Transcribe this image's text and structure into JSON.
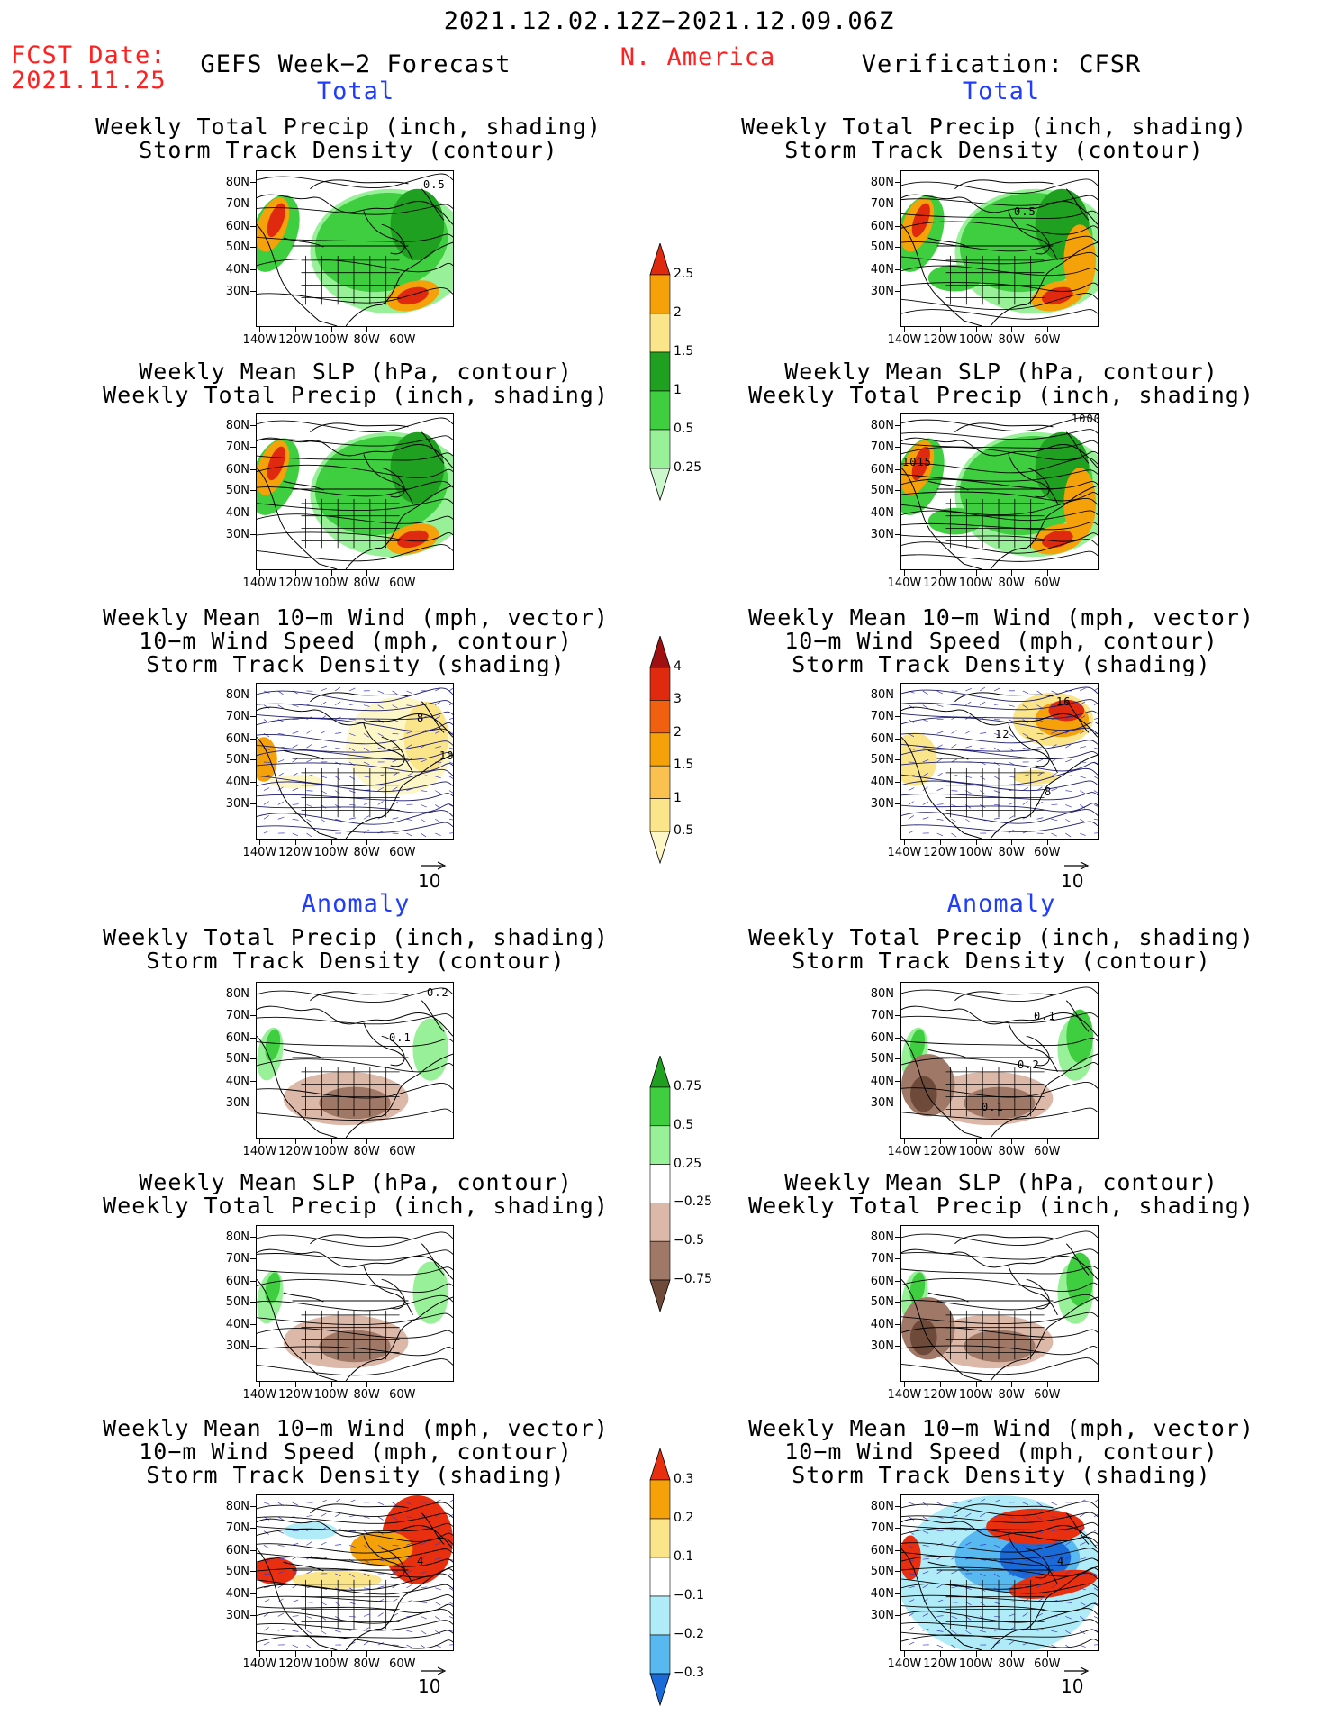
{
  "header": {
    "date_range": "2021.12.02.12Z−2021.12.09.06Z",
    "fcst_label": "FCST Date:",
    "fcst_date": "2021.11.25",
    "region": "N. America",
    "left_title": "GEFS Week−2 Forecast",
    "right_title": "Verification: CFSR"
  },
  "sections": {
    "total": "Total",
    "anomaly": "Anomaly"
  },
  "titles": {
    "precip_track": [
      "Weekly Total Precip (inch, shading)",
      "Storm Track Density (contour)"
    ],
    "slp_precip": [
      "Weekly Mean SLP (hPa, contour)",
      "Weekly Total Precip (inch, shading)"
    ],
    "wind_track": [
      "Weekly Mean 10−m Wind (mph, vector)",
      "10−m Wind Speed (mph, contour)",
      "Storm Track Density (shading)"
    ]
  },
  "axes": {
    "lat_labels": [
      "80N",
      "70N",
      "60N",
      "50N",
      "40N",
      "30N"
    ],
    "lon_labels": [
      "140W",
      "120W",
      "100W",
      "80W",
      "60W"
    ]
  },
  "vector_ref": "10",
  "panel_labels": {
    "gefs_total_precip": "0.5",
    "cfsr_total_precip": "0.5",
    "cfsr_total_slp_a": "1000",
    "cfsr_total_slp_b": "1015",
    "gefs_total_wind_a": "8",
    "gefs_total_wind_b": "10",
    "cfsr_total_wind_a": "16",
    "cfsr_total_wind_b": "12",
    "cfsr_total_wind_c": "8",
    "gefs_anom_precip_a": "0.2",
    "gefs_anom_precip_b": "0.1",
    "cfsr_anom_precip_a": "0.1",
    "cfsr_anom_precip_b": "0.2",
    "cfsr_anom_precip_c": "0.1",
    "gefs_anom_wind": "4",
    "cfsr_anom_wind": "4"
  },
  "colorbars": {
    "precip_total": {
      "labels": [
        "2.5",
        "2",
        "1.5",
        "1",
        "0.5",
        "0.25"
      ],
      "colors": [
        "#e02a10",
        "#f5a10a",
        "#fae58a",
        "#20a020",
        "#3fce3f",
        "#98f098",
        "#ccf7cc"
      ]
    },
    "track_total": {
      "labels": [
        "4",
        "3",
        "2",
        "1.5",
        "1",
        "0.5"
      ],
      "colors": [
        "#a01010",
        "#e02a10",
        "#f06010",
        "#f5a10a",
        "#fac050",
        "#fae58a",
        "#fdf7c8"
      ]
    },
    "precip_anom": {
      "labels": [
        "0.75",
        "0.5",
        "0.25",
        "−0.25",
        "−0.5",
        "−0.75"
      ],
      "colors": [
        "#20a020",
        "#3fce3f",
        "#98f098",
        "#ffffff",
        "#dcb8a8",
        "#a07868",
        "#6e4a3a"
      ]
    },
    "track_anom": {
      "labels": [
        "0.3",
        "0.2",
        "0.1",
        "−0.1",
        "−0.2",
        "−0.3"
      ],
      "colors": [
        "#e83010",
        "#f5a10a",
        "#fae58a",
        "#ffffff",
        "#b0ecf8",
        "#58b8f0",
        "#1a6ad8"
      ]
    }
  }
}
